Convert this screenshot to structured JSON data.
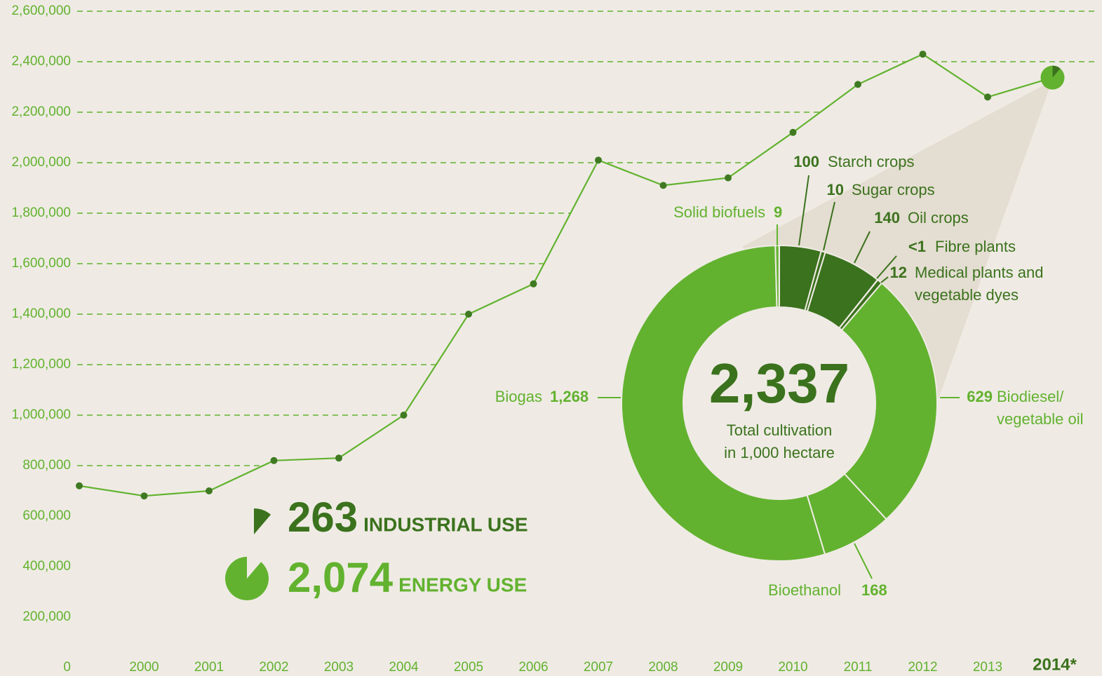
{
  "chart_data": [
    {
      "type": "line",
      "categories": [
        null,
        "2000",
        "2001",
        "2002",
        "2003",
        "2004",
        "2005",
        "2006",
        "2007",
        "2008",
        "2009",
        "2010",
        "2011",
        "2012",
        "2013",
        "2014*"
      ],
      "values": [
        720000,
        680000,
        700000,
        820000,
        830000,
        1000000,
        1400000,
        1520000,
        2010000,
        1910000,
        1940000,
        2120000,
        2310000,
        2430000,
        2260000,
        2337000
      ],
      "color": "#62b22f",
      "ylim": [
        0,
        2600000
      ],
      "yticks": [
        0,
        {
          "value": 200000,
          "label": "200,000"
        },
        {
          "value": 400000,
          "label": "400,000"
        },
        {
          "value": 600000,
          "label": "600,000"
        },
        {
          "value": 800000,
          "label": "800,000"
        },
        {
          "value": 1000000,
          "label": "1,000,000"
        },
        {
          "value": 1200000,
          "label": "1,200,000"
        },
        {
          "value": 1400000,
          "label": "1,400,000"
        },
        {
          "value": 1600000,
          "label": "1,600,000"
        },
        {
          "value": 1800000,
          "label": "1,800,000"
        },
        {
          "value": 2000000,
          "label": "2,000,000"
        },
        {
          "value": 2200000,
          "label": "2,200,000"
        },
        {
          "value": 2400000,
          "label": "2,400,000"
        },
        {
          "value": 2600000,
          "label": "2,600,000"
        }
      ],
      "grid": true
    },
    {
      "type": "donut",
      "categories": [
        "Starch crops",
        "Sugar crops",
        "Oil crops",
        "Fibre plants",
        [
          "Medical plants and",
          "vegetable dyes"
        ],
        [
          "Biodiesel/",
          "vegetable oil"
        ],
        "Bioethanol",
        "Biogas",
        "Solid biofuels"
      ],
      "values": [
        100,
        10,
        140,
        0.5,
        12,
        629,
        168,
        1268,
        9
      ],
      "value_labels": [
        "100",
        "10",
        "140",
        "<1",
        "12",
        "629",
        "168",
        "1,268",
        "9"
      ],
      "colors": [
        "#3b721d",
        "#3b721d",
        "#3b721d",
        "#3b721d",
        "#3b721d",
        "#62b22f",
        "#62b22f",
        "#62b22f",
        "#62b22f"
      ],
      "total": {
        "value": 2337,
        "label": "2,337"
      },
      "center_text": [
        "Total cultivation",
        "in 1,000 hectare"
      ],
      "groups": [
        {
          "name": "INDUSTRIAL USE",
          "value": 263,
          "color": "#3b721d"
        },
        {
          "name": "ENERGY USE",
          "value": 2074,
          "value_label": "2,074",
          "color": "#62b22f"
        }
      ]
    }
  ]
}
